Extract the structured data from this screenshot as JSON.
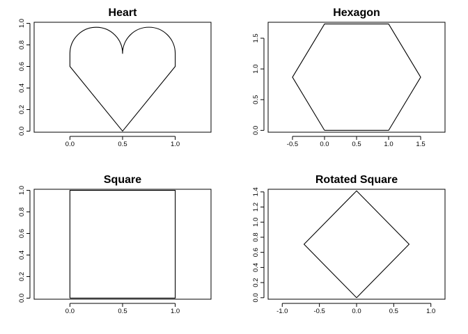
{
  "figure": {
    "background": "#ffffff",
    "foreground": "#000000"
  },
  "chart_data": [
    {
      "type": "line",
      "title": "Heart",
      "xlabel": "",
      "ylabel": "",
      "xlim": [
        -0.34,
        1.34
      ],
      "ylim": [
        -0.01,
        1.01
      ],
      "x_ticks": [
        0,
        0.5,
        1
      ],
      "x_tick_labels": [
        "0.0",
        "0.5",
        "1.0"
      ],
      "y_ticks": [
        0,
        0.2,
        0.4,
        0.6,
        0.8,
        1
      ],
      "y_tick_labels": [
        "0.0",
        "0.2",
        "0.4",
        "0.6",
        "0.8",
        "1.0"
      ],
      "grid": false,
      "series": [
        {
          "x": [
            0.5,
            0.0,
            0.0,
            0.02,
            0.06,
            0.14,
            0.25,
            0.36,
            0.44,
            0.49,
            0.5,
            0.51,
            0.56,
            0.64,
            0.75,
            0.86,
            0.94,
            0.98,
            1.0,
            1.0,
            0.5
          ],
          "y": [
            0.0,
            0.6,
            0.72,
            0.8,
            0.88,
            0.95,
            0.98,
            0.95,
            0.88,
            0.8,
            0.72,
            0.8,
            0.88,
            0.95,
            0.98,
            0.95,
            0.88,
            0.8,
            0.72,
            0.6,
            0.0
          ]
        }
      ]
    },
    {
      "type": "line",
      "title": "Hexagon",
      "xlabel": "",
      "ylabel": "",
      "xlim": [
        -0.88,
        1.88
      ],
      "ylim": [
        -0.03,
        1.76
      ],
      "x_ticks": [
        -0.5,
        0,
        0.5,
        1,
        1.5
      ],
      "x_tick_labels": [
        "-0.5",
        "0.0",
        "0.5",
        "1.0",
        "1.5"
      ],
      "y_ticks": [
        0,
        0.5,
        1,
        1.5
      ],
      "y_tick_labels": [
        "0.0",
        "0.5",
        "1.0",
        "1.5"
      ],
      "grid": false,
      "series": [
        {
          "x": [
            0,
            1,
            1.5,
            1,
            0,
            -0.5,
            0
          ],
          "y": [
            0,
            0,
            0.866,
            1.732,
            1.732,
            0.866,
            0
          ]
        }
      ]
    },
    {
      "type": "line",
      "title": "Square",
      "xlabel": "",
      "ylabel": "",
      "xlim": [
        -0.34,
        1.34
      ],
      "ylim": [
        -0.01,
        1.01
      ],
      "x_ticks": [
        0,
        0.5,
        1
      ],
      "x_tick_labels": [
        "0.0",
        "0.5",
        "1.0"
      ],
      "y_ticks": [
        0,
        0.2,
        0.4,
        0.6,
        0.8,
        1
      ],
      "y_tick_labels": [
        "0.0",
        "0.2",
        "0.4",
        "0.6",
        "0.8",
        "1.0"
      ],
      "grid": false,
      "series": [
        {
          "x": [
            0,
            1,
            1,
            0,
            0
          ],
          "y": [
            0,
            0,
            1,
            1,
            0
          ]
        }
      ]
    },
    {
      "type": "line",
      "title": "Rotated Square",
      "xlabel": "",
      "ylabel": "",
      "xlim": [
        -1.19,
        1.19
      ],
      "ylim": [
        -0.02,
        1.435
      ],
      "x_ticks": [
        -1,
        -0.5,
        0,
        0.5,
        1
      ],
      "x_tick_labels": [
        "-1.0",
        "-0.5",
        "0.0",
        "0.5",
        "1.0"
      ],
      "y_ticks": [
        0,
        0.2,
        0.4,
        0.6,
        0.8,
        1,
        1.2,
        1.4
      ],
      "y_tick_labels": [
        "0.0",
        "0.2",
        "0.4",
        "0.6",
        "0.8",
        "1.0",
        "1.2",
        "1.4"
      ],
      "grid": false,
      "series": [
        {
          "x": [
            0,
            0.707,
            0,
            -0.707,
            0
          ],
          "y": [
            0,
            0.707,
            1.414,
            0.707,
            0
          ]
        }
      ]
    }
  ]
}
